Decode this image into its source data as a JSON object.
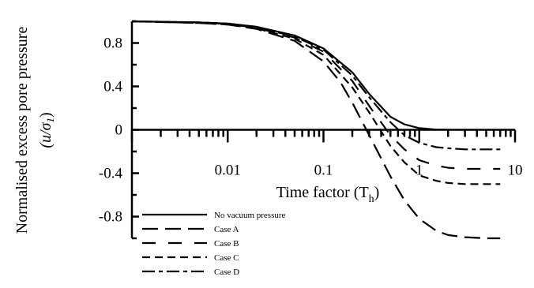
{
  "chart_data": {
    "type": "line",
    "x_scale": "log",
    "xlim": [
      0.001,
      10
    ],
    "ylim": [
      -1.0,
      1.0
    ],
    "xlabel_prefix": "Time factor (T",
    "xlabel_sub": "h",
    "xlabel_suffix": ")",
    "ylabel_line1": "Normalised excess pore pressure",
    "ylabel_line2_prefix": "(u/σ",
    "ylabel_line2_sub": "1",
    "ylabel_line2_suffix": ")",
    "x_ticks": [
      0.01,
      0.1,
      1,
      10
    ],
    "x_tick_labels": [
      "0.01",
      "0.1",
      "1",
      "10"
    ],
    "y_ticks": [
      0.8,
      0.4,
      0,
      -0.4,
      -0.8
    ],
    "y_tick_labels": [
      "0.8",
      "0.4",
      "0",
      "-0.4",
      "-0.8"
    ],
    "grid": false,
    "legend_position": "bottom-left",
    "series": [
      {
        "name": "No vacuum pressure",
        "dash": "solid",
        "x": [
          0.001,
          0.005,
          0.01,
          0.02,
          0.05,
          0.1,
          0.2,
          0.3,
          0.5,
          0.7,
          1,
          1.5,
          2
        ],
        "y": [
          1.0,
          0.99,
          0.98,
          0.95,
          0.87,
          0.75,
          0.53,
          0.33,
          0.12,
          0.05,
          0.015,
          0.002,
          0.0
        ]
      },
      {
        "name": "Case A",
        "dash": "long-dash",
        "x": [
          0.001,
          0.005,
          0.01,
          0.02,
          0.05,
          0.1,
          0.15,
          0.2,
          0.3,
          0.5,
          0.7,
          1,
          1.5,
          2,
          3,
          5,
          7
        ],
        "y": [
          1.0,
          0.985,
          0.97,
          0.93,
          0.82,
          0.63,
          0.44,
          0.25,
          -0.05,
          -0.43,
          -0.65,
          -0.82,
          -0.93,
          -0.97,
          -0.99,
          -1.0,
          -1.0
        ]
      },
      {
        "name": "Case B",
        "dash": "dash-gap",
        "x": [
          0.001,
          0.005,
          0.01,
          0.02,
          0.05,
          0.1,
          0.2,
          0.3,
          0.5,
          0.7,
          1,
          1.5,
          2,
          3,
          4,
          7
        ],
        "y": [
          1.0,
          0.99,
          0.975,
          0.94,
          0.85,
          0.72,
          0.45,
          0.22,
          -0.05,
          -0.18,
          -0.28,
          -0.33,
          -0.35,
          -0.36,
          -0.36,
          -0.36
        ]
      },
      {
        "name": "Case C",
        "dash": "short-dash",
        "x": [
          0.001,
          0.005,
          0.01,
          0.02,
          0.05,
          0.1,
          0.2,
          0.3,
          0.5,
          0.7,
          1,
          1.5,
          2,
          3,
          5,
          7
        ],
        "y": [
          1.0,
          0.985,
          0.97,
          0.935,
          0.84,
          0.69,
          0.39,
          0.16,
          -0.15,
          -0.3,
          -0.42,
          -0.47,
          -0.49,
          -0.5,
          -0.5,
          -0.5
        ]
      },
      {
        "name": "Case D",
        "dash": "dash-dot",
        "x": [
          0.001,
          0.005,
          0.01,
          0.02,
          0.05,
          0.1,
          0.2,
          0.3,
          0.5,
          0.7,
          1,
          1.5,
          2,
          3,
          5,
          7
        ],
        "y": [
          1.0,
          0.99,
          0.98,
          0.945,
          0.86,
          0.74,
          0.5,
          0.3,
          0.07,
          -0.05,
          -0.12,
          -0.16,
          -0.17,
          -0.18,
          -0.18,
          -0.18
        ]
      }
    ]
  }
}
